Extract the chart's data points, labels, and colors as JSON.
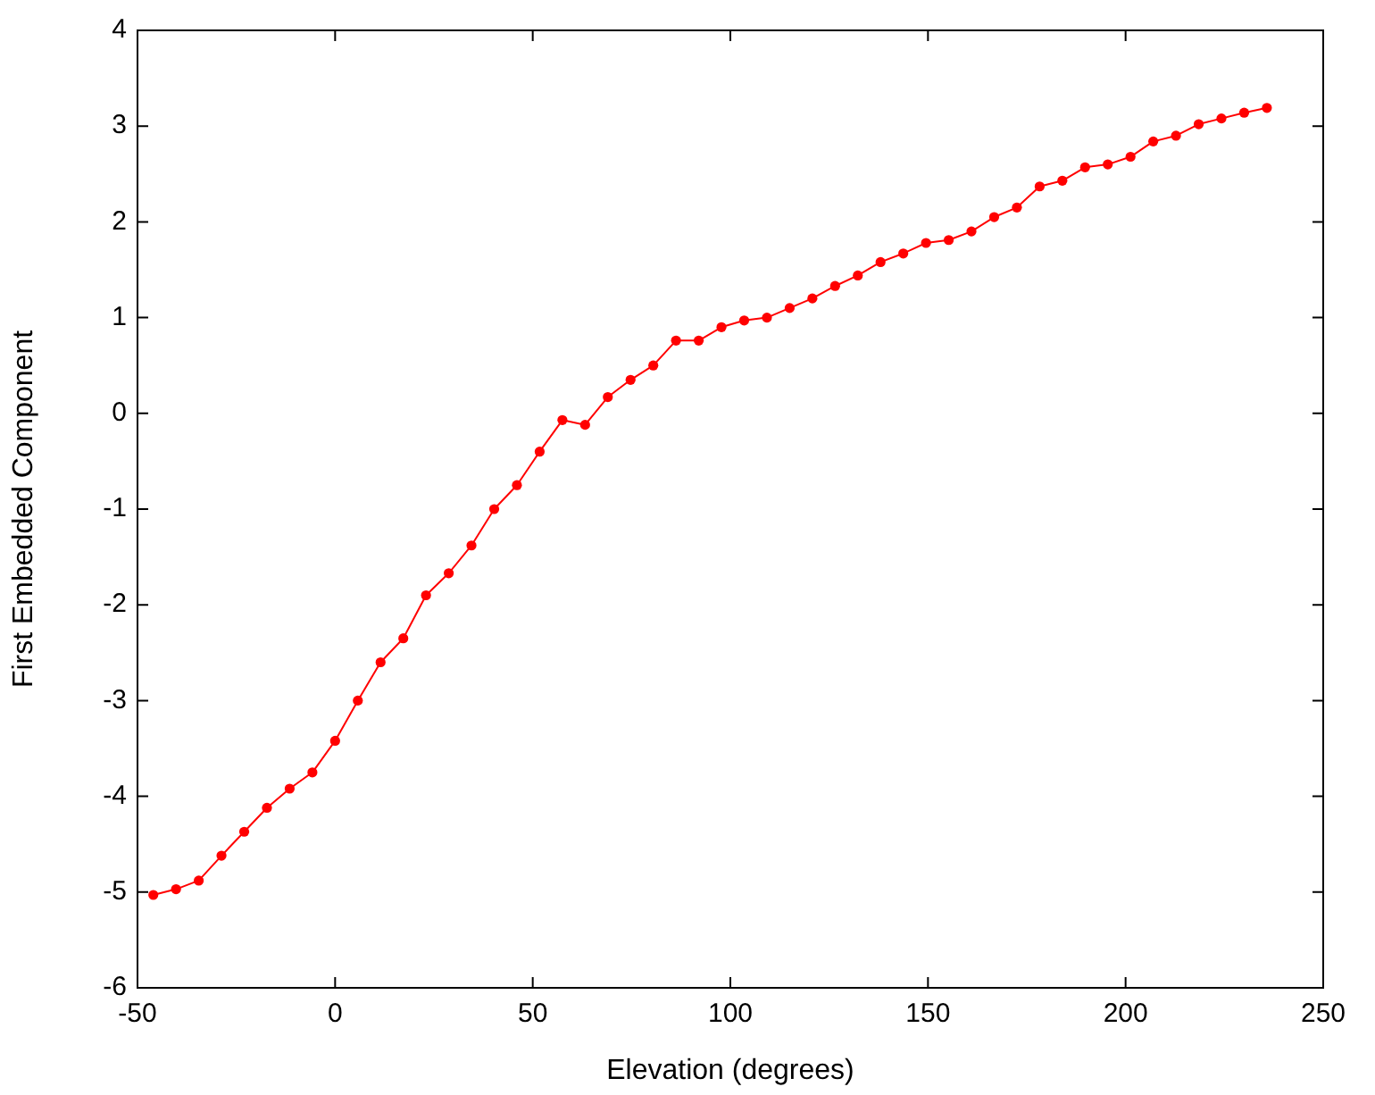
{
  "chart_data": {
    "type": "line",
    "xlabel": "Elevation (degrees)",
    "ylabel": "First Embedded Component",
    "x": [
      -46,
      -40.25,
      -34.5,
      -28.75,
      -23,
      -17.25,
      -11.5,
      -5.75,
      0,
      5.75,
      11.5,
      17.25,
      23,
      28.75,
      34.5,
      40.25,
      46,
      51.75,
      57.5,
      63.25,
      69,
      74.75,
      80.5,
      86.25,
      92,
      97.75,
      103.5,
      109.25,
      115,
      120.75,
      126.5,
      132.25,
      138,
      143.75,
      149.5,
      155.25,
      161,
      166.75,
      172.5,
      178.25,
      184,
      189.75,
      195.5,
      201.25,
      207,
      212.75,
      218.5,
      224.25,
      230,
      235.75
    ],
    "series": [
      {
        "color": "#ff0000",
        "values": [
          -5.03,
          -4.97,
          -4.88,
          -4.62,
          -4.37,
          -4.12,
          -3.92,
          -3.75,
          -3.42,
          -3.0,
          -2.6,
          -2.35,
          -1.9,
          -1.67,
          -1.38,
          -1.0,
          -0.75,
          -0.4,
          -0.07,
          -0.12,
          0.17,
          0.35,
          0.5,
          0.76,
          0.76,
          0.9,
          0.97,
          1.0,
          1.1,
          1.2,
          1.33,
          1.44,
          1.58,
          1.67,
          1.78,
          1.81,
          1.9,
          2.05,
          2.15,
          2.37,
          2.43,
          2.57,
          2.6,
          2.68,
          2.84,
          2.9,
          3.02,
          3.08,
          3.14,
          3.19
        ]
      }
    ],
    "xlim": [
      -50,
      250
    ],
    "xticks": [
      -50,
      0,
      50,
      100,
      150,
      200,
      250
    ],
    "ylim": [
      -6,
      4
    ],
    "yticks": [
      -6,
      -5,
      -4,
      -3,
      -2,
      -1,
      0,
      1,
      2,
      3,
      4
    ],
    "grid": false,
    "legend": false,
    "marker": "circle",
    "line_style": "solid"
  }
}
